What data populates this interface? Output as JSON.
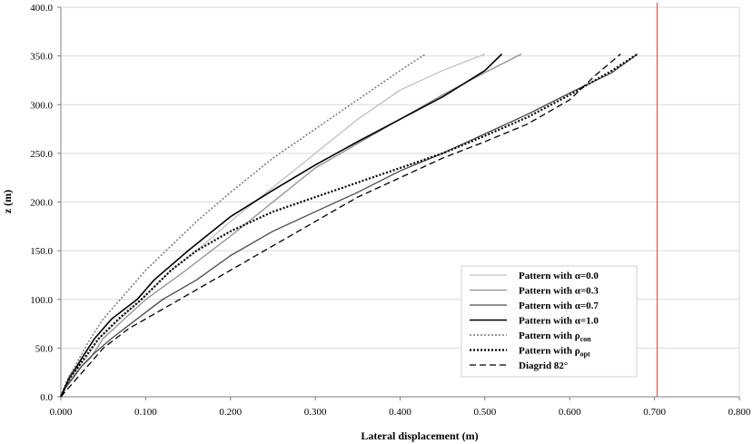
{
  "chart_data": {
    "type": "line",
    "title": "",
    "xlabel": "Lateral displacement (m)",
    "ylabel": "z (m)",
    "xlim": [
      0,
      0.8
    ],
    "ylim": [
      0,
      400
    ],
    "x_ticks": [
      "0.000",
      "0.100",
      "0.200",
      "0.300",
      "0.400",
      "0.500",
      "0.600",
      "0.700",
      "0.800"
    ],
    "y_ticks": [
      "0.0",
      "50.0",
      "100.0",
      "150.0",
      "200.0",
      "250.0",
      "300.0",
      "350.0",
      "400.0"
    ],
    "grid": "horizontal",
    "legend_position": "bottom-right",
    "reference_line": {
      "x": 0.703,
      "color": "#e05a5a"
    },
    "series": [
      {
        "name": "Pattern with α=0.0",
        "label_prefix": "Pattern with α=0.0",
        "label_sub": "",
        "color": "#c0c0c0",
        "dash": "",
        "width": 1.3,
        "points": [
          [
            0,
            0
          ],
          [
            0.005,
            10
          ],
          [
            0.012,
            20
          ],
          [
            0.02,
            30
          ],
          [
            0.03,
            40
          ],
          [
            0.045,
            60
          ],
          [
            0.07,
            80
          ],
          [
            0.095,
            100
          ],
          [
            0.13,
            130
          ],
          [
            0.16,
            150
          ],
          [
            0.2,
            180
          ],
          [
            0.25,
            215
          ],
          [
            0.3,
            250
          ],
          [
            0.35,
            285
          ],
          [
            0.4,
            315
          ],
          [
            0.45,
            335
          ],
          [
            0.5,
            352
          ]
        ]
      },
      {
        "name": "Pattern with α=0.3",
        "label_prefix": "Pattern with α=0.3",
        "label_sub": "",
        "color": "#8f8f8f",
        "dash": "",
        "width": 1.3,
        "points": [
          [
            0,
            0
          ],
          [
            0.006,
            10
          ],
          [
            0.014,
            20
          ],
          [
            0.023,
            30
          ],
          [
            0.035,
            40
          ],
          [
            0.05,
            60
          ],
          [
            0.075,
            80
          ],
          [
            0.1,
            100
          ],
          [
            0.14,
            125
          ],
          [
            0.2,
            165
          ],
          [
            0.25,
            200
          ],
          [
            0.3,
            235
          ],
          [
            0.35,
            260
          ],
          [
            0.4,
            285
          ],
          [
            0.45,
            310
          ],
          [
            0.5,
            333
          ],
          [
            0.543,
            352
          ]
        ]
      },
      {
        "name": "Pattern with α=0.7",
        "label_prefix": "Pattern with α=0.7",
        "label_sub": "",
        "color": "#4a4a4a",
        "dash": "",
        "width": 1.3,
        "points": [
          [
            0,
            0
          ],
          [
            0.006,
            10
          ],
          [
            0.015,
            20
          ],
          [
            0.025,
            32
          ],
          [
            0.04,
            45
          ],
          [
            0.06,
            60
          ],
          [
            0.09,
            80
          ],
          [
            0.12,
            100
          ],
          [
            0.16,
            120
          ],
          [
            0.2,
            145
          ],
          [
            0.25,
            170
          ],
          [
            0.3,
            190
          ],
          [
            0.35,
            210
          ],
          [
            0.4,
            232
          ],
          [
            0.45,
            250
          ],
          [
            0.5,
            270
          ],
          [
            0.55,
            290
          ],
          [
            0.6,
            312
          ],
          [
            0.65,
            333
          ],
          [
            0.68,
            352
          ]
        ]
      },
      {
        "name": "Pattern with α=1.0",
        "label_prefix": "Pattern with α=1.0",
        "label_sub": "",
        "color": "#000000",
        "dash": "",
        "width": 1.6,
        "points": [
          [
            0,
            0
          ],
          [
            0.005,
            10
          ],
          [
            0.01,
            20
          ],
          [
            0.018,
            30
          ],
          [
            0.025,
            40
          ],
          [
            0.04,
            60
          ],
          [
            0.06,
            80
          ],
          [
            0.09,
            100
          ],
          [
            0.11,
            120
          ],
          [
            0.15,
            150
          ],
          [
            0.2,
            185
          ],
          [
            0.25,
            212
          ],
          [
            0.3,
            238
          ],
          [
            0.35,
            262
          ],
          [
            0.4,
            285
          ],
          [
            0.45,
            308
          ],
          [
            0.5,
            335
          ],
          [
            0.52,
            352
          ]
        ]
      },
      {
        "name": "Pattern with ρcon",
        "label_prefix": "Pattern with ρ",
        "label_sub": "con",
        "color": "#777777",
        "dash": "2,2",
        "width": 1.5,
        "points": [
          [
            0,
            0
          ],
          [
            0.004,
            10
          ],
          [
            0.009,
            20
          ],
          [
            0.016,
            30
          ],
          [
            0.022,
            40
          ],
          [
            0.035,
            60
          ],
          [
            0.05,
            80
          ],
          [
            0.07,
            100
          ],
          [
            0.1,
            130
          ],
          [
            0.13,
            155
          ],
          [
            0.16,
            180
          ],
          [
            0.2,
            210
          ],
          [
            0.25,
            245
          ],
          [
            0.3,
            275
          ],
          [
            0.35,
            305
          ],
          [
            0.4,
            335
          ],
          [
            0.43,
            352
          ]
        ]
      },
      {
        "name": "Pattern with ρopt",
        "label_prefix": "Pattern with ρ",
        "label_sub": "opt",
        "color": "#000000",
        "dash": "2,2",
        "width": 2.2,
        "points": [
          [
            0,
            0
          ],
          [
            0.005,
            10
          ],
          [
            0.011,
            20
          ],
          [
            0.02,
            30
          ],
          [
            0.028,
            40
          ],
          [
            0.045,
            60
          ],
          [
            0.068,
            80
          ],
          [
            0.095,
            100
          ],
          [
            0.13,
            130
          ],
          [
            0.16,
            150
          ],
          [
            0.2,
            170
          ],
          [
            0.25,
            190
          ],
          [
            0.3,
            205
          ],
          [
            0.35,
            220
          ],
          [
            0.4,
            235
          ],
          [
            0.45,
            250
          ],
          [
            0.5,
            268
          ],
          [
            0.55,
            287
          ],
          [
            0.6,
            310
          ],
          [
            0.65,
            335
          ],
          [
            0.68,
            352
          ]
        ]
      },
      {
        "name": "Diagrid 82°",
        "label_prefix": "Diagrid 82°",
        "label_sub": "",
        "color": "#000000",
        "dash": "7,4",
        "width": 1.3,
        "points": [
          [
            0,
            0
          ],
          [
            0.01,
            10
          ],
          [
            0.02,
            20
          ],
          [
            0.035,
            35
          ],
          [
            0.05,
            50
          ],
          [
            0.08,
            70
          ],
          [
            0.12,
            90
          ],
          [
            0.15,
            105
          ],
          [
            0.2,
            130
          ],
          [
            0.25,
            155
          ],
          [
            0.3,
            180
          ],
          [
            0.35,
            205
          ],
          [
            0.4,
            225
          ],
          [
            0.45,
            245
          ],
          [
            0.5,
            262
          ],
          [
            0.55,
            280
          ],
          [
            0.6,
            305
          ],
          [
            0.63,
            330
          ],
          [
            0.66,
            352
          ]
        ]
      }
    ]
  }
}
